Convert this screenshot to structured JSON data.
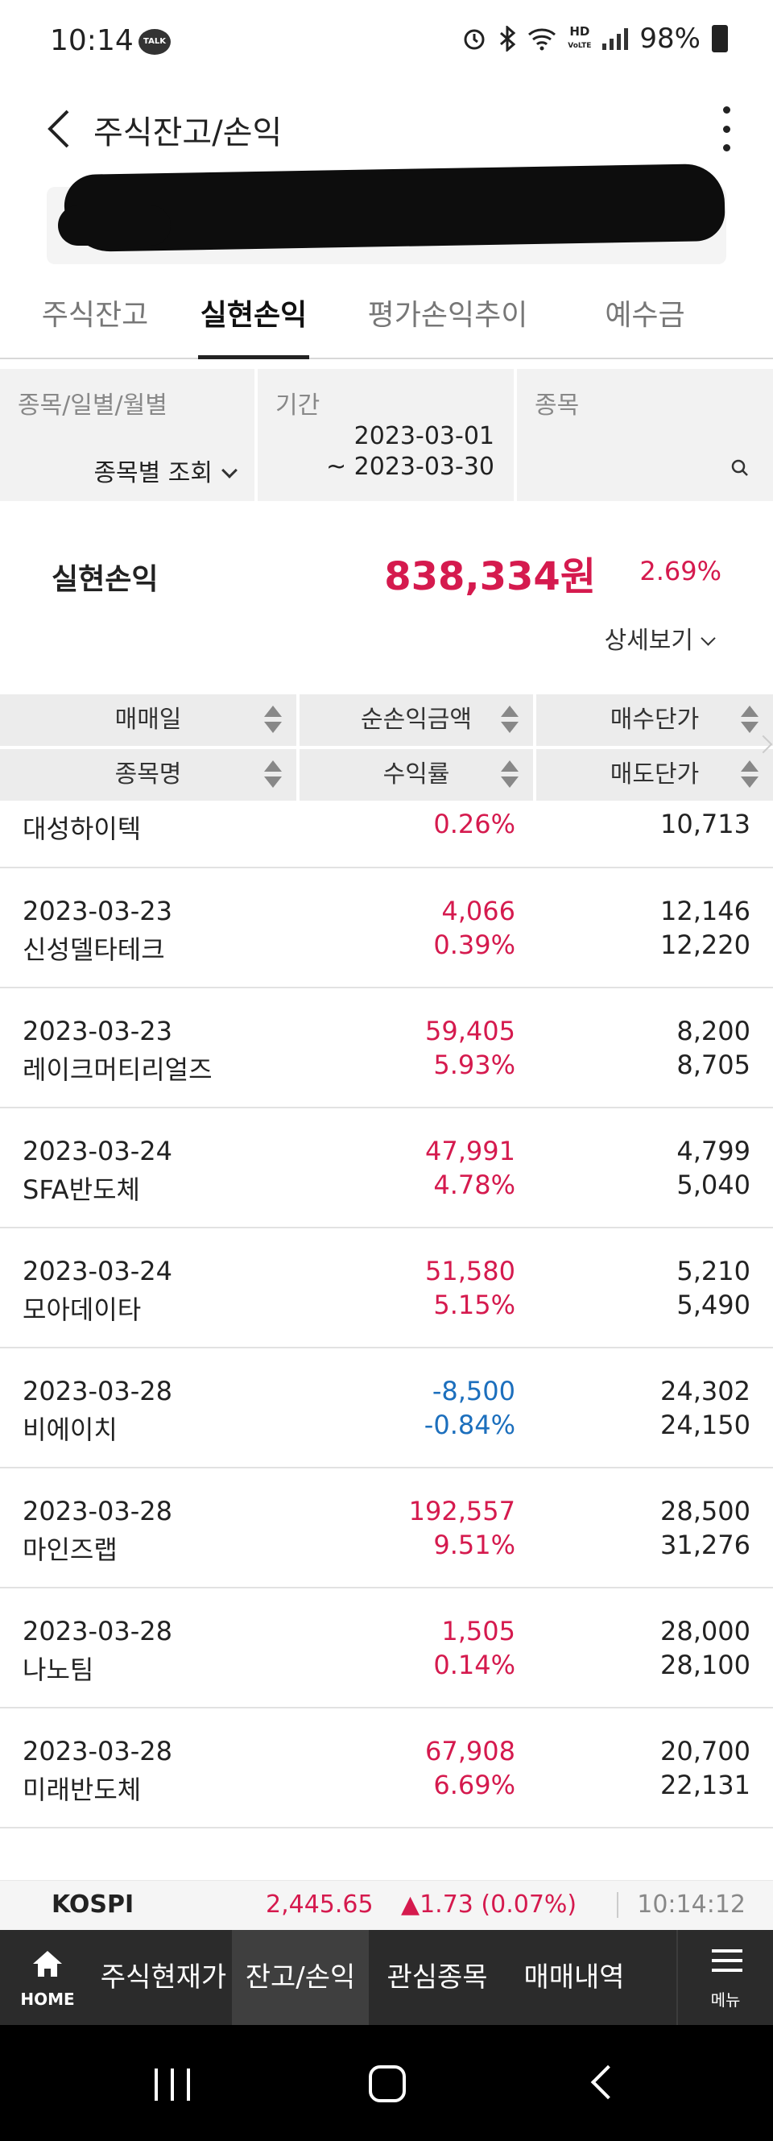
{
  "status_bar": {
    "time": "10:14",
    "talk_badge": "TALK",
    "hd_label": "HD",
    "voice_label": "VoLTE",
    "battery": "98%"
  },
  "header": {
    "title": "주식잔고/손익"
  },
  "tabs": [
    {
      "label": "주식잔고",
      "active": false
    },
    {
      "label": "실현손익",
      "active": true
    },
    {
      "label": "평가손익추이",
      "active": false
    },
    {
      "label": "예수금",
      "active": false
    }
  ],
  "filter": {
    "type_label": "종목/일별/월별",
    "type_value": "종목별 조회",
    "period_label": "기간",
    "period_from": "2023-03-01",
    "period_to": "~ 2023-03-30",
    "stock_label": "종목"
  },
  "summary": {
    "label": "실현손익",
    "amount": "838,334원",
    "rate": "2.69%",
    "detail_label": "상세보기"
  },
  "table_headers": {
    "row1": [
      "매매일",
      "순손익금액",
      "매수단가"
    ],
    "row2": [
      "종목명",
      "수익률",
      "매도단가"
    ]
  },
  "rows": [
    {
      "date": "",
      "name": "대성하이텍",
      "amount": "",
      "rate": "0.26%",
      "buy": "",
      "sell": "10,713",
      "sign": "pos"
    },
    {
      "date": "2023-03-23",
      "name": "신성델타테크",
      "amount": "4,066",
      "rate": "0.39%",
      "buy": "12,146",
      "sell": "12,220",
      "sign": "pos"
    },
    {
      "date": "2023-03-23",
      "name": "레이크머티리얼즈",
      "amount": "59,405",
      "rate": "5.93%",
      "buy": "8,200",
      "sell": "8,705",
      "sign": "pos"
    },
    {
      "date": "2023-03-24",
      "name": "SFA반도체",
      "amount": "47,991",
      "rate": "4.78%",
      "buy": "4,799",
      "sell": "5,040",
      "sign": "pos"
    },
    {
      "date": "2023-03-24",
      "name": "모아데이타",
      "amount": "51,580",
      "rate": "5.15%",
      "buy": "5,210",
      "sell": "5,490",
      "sign": "pos"
    },
    {
      "date": "2023-03-28",
      "name": "비에이치",
      "amount": "-8,500",
      "rate": "-0.84%",
      "buy": "24,302",
      "sell": "24,150",
      "sign": "neg"
    },
    {
      "date": "2023-03-28",
      "name": "마인즈랩",
      "amount": "192,557",
      "rate": "9.51%",
      "buy": "28,500",
      "sell": "31,276",
      "sign": "pos"
    },
    {
      "date": "2023-03-28",
      "name": "나노팀",
      "amount": "1,505",
      "rate": "0.14%",
      "buy": "28,000",
      "sell": "28,100",
      "sign": "pos"
    },
    {
      "date": "2023-03-28",
      "name": "미래반도체",
      "amount": "67,908",
      "rate": "6.69%",
      "buy": "20,700",
      "sell": "22,131",
      "sign": "pos"
    }
  ],
  "ticker": {
    "name": "KOSPI",
    "value": "2,445.65",
    "change": "▲1.73 (0.07%)",
    "time": "10:14:12"
  },
  "bottom_nav": {
    "home_label": "HOME",
    "items": [
      "주식현재가",
      "잔고/손익",
      "관심종목",
      "매매내역"
    ],
    "active_index": 1,
    "menu_label": "메뉴"
  },
  "colors": {
    "positive": "#d51a4e",
    "negative": "#1c6fbd",
    "nav_bg": "#2b2b2b"
  },
  "icons": [
    "talk-icon",
    "alarm-icon",
    "bluetooth-icon",
    "wifi-icon",
    "signal-icon",
    "battery-icon",
    "back-arrow-icon",
    "more-vert-icon",
    "chevron-down-icon",
    "search-icon",
    "sort-icon",
    "home-icon",
    "hamburger-icon"
  ]
}
